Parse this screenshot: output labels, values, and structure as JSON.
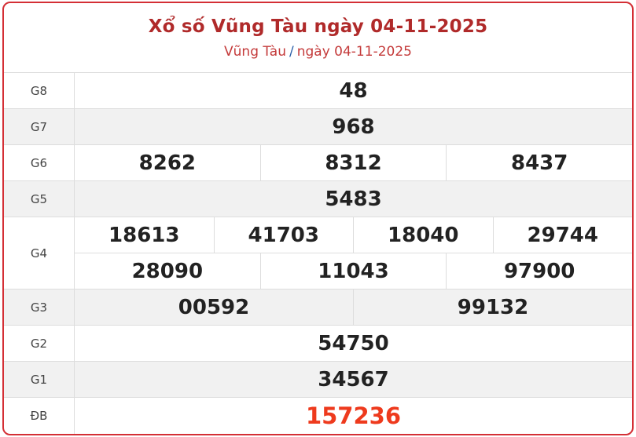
{
  "header": {
    "title": "Xổ số Vũng Tàu ngày 04-11-2025",
    "breadcrumb": {
      "location": "Vũng Tàu",
      "separator": "/",
      "date": "ngày 04-11-2025"
    }
  },
  "colors": {
    "border": "#d42f35",
    "title": "#b02a2a",
    "special_prize": "#ee3a1d"
  },
  "prizes": [
    {
      "label": "G8",
      "lines": [
        [
          "48"
        ]
      ]
    },
    {
      "label": "G7",
      "lines": [
        [
          "968"
        ]
      ]
    },
    {
      "label": "G6",
      "lines": [
        [
          "8262",
          "8312",
          "8437"
        ]
      ]
    },
    {
      "label": "G5",
      "lines": [
        [
          "5483"
        ]
      ]
    },
    {
      "label": "G4",
      "lines": [
        [
          "18613",
          "41703",
          "18040",
          "29744"
        ],
        [
          "28090",
          "11043",
          "97900"
        ]
      ]
    },
    {
      "label": "G3",
      "lines": [
        [
          "00592",
          "99132"
        ]
      ]
    },
    {
      "label": "G2",
      "lines": [
        [
          "54750"
        ]
      ]
    },
    {
      "label": "G1",
      "lines": [
        [
          "34567"
        ]
      ]
    },
    {
      "label": "ĐB",
      "lines": [
        [
          "157236"
        ]
      ]
    }
  ]
}
